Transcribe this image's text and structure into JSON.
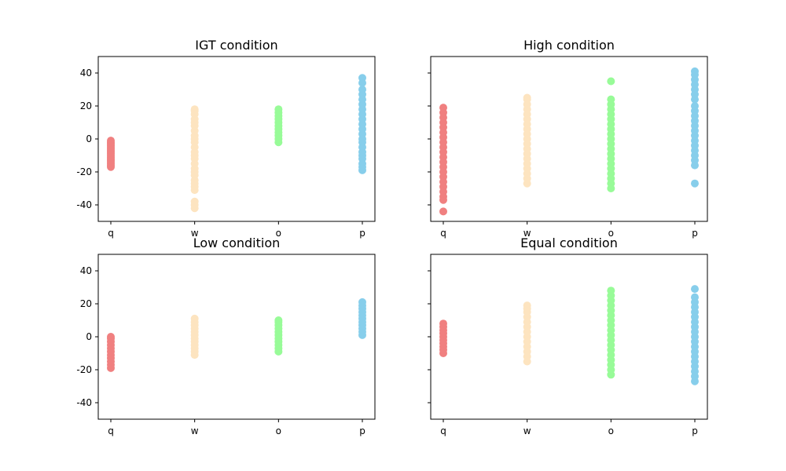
{
  "chart_data": [
    {
      "type": "scatter",
      "title": "IGT condition",
      "categories": [
        "q",
        "w",
        "o",
        "p"
      ],
      "ylim": [
        -50,
        50
      ],
      "yticks": [
        -40,
        -20,
        0,
        20,
        40
      ],
      "show_ytick_labels": true,
      "series": [
        {
          "category": "q",
          "color": "#F08080",
          "values": [
            -17,
            -16,
            -15,
            -14,
            -13,
            -12,
            -11,
            -10,
            -9,
            -8,
            -7,
            -6,
            -5,
            -4,
            -3,
            -2,
            -1
          ]
        },
        {
          "category": "w",
          "color": "#FDE4C0",
          "values": [
            -42,
            -40,
            -38,
            -31,
            -29,
            -27,
            -25,
            -22,
            -20,
            -18,
            -15,
            -12,
            -10,
            -8,
            -5,
            -2,
            0,
            2,
            5,
            8,
            10,
            12,
            15,
            17,
            18
          ]
        },
        {
          "category": "o",
          "color": "#98FB98",
          "values": [
            -2,
            0,
            2,
            4,
            6,
            8,
            10,
            12,
            14,
            16,
            18
          ]
        },
        {
          "category": "p",
          "color": "#87CEEB",
          "values": [
            -19,
            -17,
            -15,
            -12,
            -10,
            -8,
            -5,
            -2,
            0,
            3,
            6,
            9,
            12,
            15,
            18,
            21,
            24,
            27,
            30,
            34,
            37
          ]
        }
      ]
    },
    {
      "type": "scatter",
      "title": "High condition",
      "categories": [
        "q",
        "w",
        "o",
        "p"
      ],
      "ylim": [
        -50,
        50
      ],
      "yticks": [
        -40,
        -20,
        0,
        20,
        40
      ],
      "show_ytick_labels": false,
      "series": [
        {
          "category": "q",
          "color": "#F08080",
          "values": [
            -44,
            -37,
            -35,
            -32,
            -29,
            -26,
            -23,
            -20,
            -17,
            -14,
            -11,
            -8,
            -5,
            -2,
            1,
            4,
            7,
            10,
            13,
            16,
            19
          ]
        },
        {
          "category": "w",
          "color": "#FDE4C0",
          "values": [
            -27,
            -24,
            -21,
            -18,
            -15,
            -12,
            -9,
            -6,
            -3,
            0,
            3,
            6,
            9,
            12,
            15,
            18,
            21,
            24,
            25
          ]
        },
        {
          "category": "o",
          "color": "#98FB98",
          "values": [
            -30,
            -27,
            -24,
            -21,
            -18,
            -15,
            -12,
            -9,
            -6,
            -3,
            0,
            3,
            6,
            9,
            12,
            15,
            18,
            21,
            24,
            35
          ]
        },
        {
          "category": "p",
          "color": "#87CEEB",
          "values": [
            -27,
            -16,
            -13,
            -10,
            -7,
            -4,
            -1,
            2,
            5,
            8,
            11,
            14,
            17,
            20,
            24,
            27,
            30,
            33,
            36,
            39,
            41
          ]
        }
      ]
    },
    {
      "type": "scatter",
      "title": "Low condition",
      "categories": [
        "q",
        "w",
        "o",
        "p"
      ],
      "ylim": [
        -50,
        50
      ],
      "yticks": [
        -40,
        -20,
        0,
        20,
        40
      ],
      "show_ytick_labels": true,
      "series": [
        {
          "category": "q",
          "color": "#F08080",
          "values": [
            -19,
            -17,
            -15,
            -13,
            -11,
            -9,
            -7,
            -5,
            -3,
            -1,
            0
          ]
        },
        {
          "category": "w",
          "color": "#FDE4C0",
          "values": [
            -11,
            -9,
            -7,
            -5,
            -3,
            -1,
            1,
            3,
            5,
            7,
            9,
            11
          ]
        },
        {
          "category": "o",
          "color": "#98FB98",
          "values": [
            -9,
            -7,
            -5,
            -3,
            -1,
            1,
            3,
            5,
            7,
            9,
            10
          ]
        },
        {
          "category": "p",
          "color": "#87CEEB",
          "values": [
            1,
            3,
            5,
            7,
            9,
            11,
            13,
            15,
            17,
            19,
            21
          ]
        }
      ]
    },
    {
      "type": "scatter",
      "title": "Equal condition",
      "categories": [
        "q",
        "w",
        "o",
        "p"
      ],
      "ylim": [
        -50,
        50
      ],
      "yticks": [
        -40,
        -20,
        0,
        20,
        40
      ],
      "show_ytick_labels": false,
      "series": [
        {
          "category": "q",
          "color": "#F08080",
          "values": [
            -10,
            -8,
            -6,
            -4,
            -2,
            0,
            2,
            4,
            6,
            8
          ]
        },
        {
          "category": "w",
          "color": "#FDE4C0",
          "values": [
            -15,
            -12,
            -9,
            -6,
            -3,
            0,
            3,
            6,
            9,
            12,
            15,
            17,
            19
          ]
        },
        {
          "category": "o",
          "color": "#98FB98",
          "values": [
            -23,
            -20,
            -17,
            -14,
            -11,
            -8,
            -5,
            -2,
            1,
            4,
            7,
            10,
            13,
            16,
            19,
            22,
            25,
            28
          ]
        },
        {
          "category": "p",
          "color": "#87CEEB",
          "values": [
            -27,
            -24,
            -21,
            -18,
            -15,
            -12,
            -9,
            -6,
            -3,
            0,
            3,
            6,
            9,
            12,
            15,
            18,
            21,
            24,
            29
          ]
        }
      ]
    }
  ]
}
